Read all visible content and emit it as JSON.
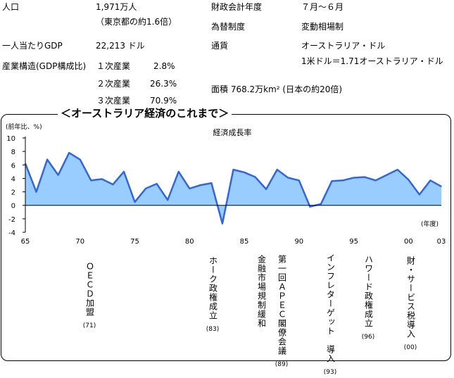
{
  "facts": {
    "population_label": "人口",
    "population_value": "1,971万人",
    "population_note": "（東京都の約1.6倍）",
    "gdp_label": "一人当たりGDP",
    "gdp_value": "22,213 ドル",
    "structure_label": "産業構造(GDP構成比)",
    "primary_label": "１次産業",
    "primary_value": "2.8%",
    "secondary_label": "２次産業",
    "secondary_value": "26.3%",
    "tertiary_label": "３次産業",
    "tertiary_value": "70.9%",
    "fiscal_label": "財政会計年度",
    "fiscal_value": "７月～６月",
    "fx_label": "為替制度",
    "fx_value": "変動相場制",
    "currency_label": "通貨",
    "currency_value": "オーストラリア・ドル",
    "currency_rate": "1米ドル＝1.71オーストラリア・ドル",
    "area_text": "面積 768.2万km² (日本の約20倍)"
  },
  "section_title": "＜オーストラリア経済のこれまで＞",
  "chart_data": {
    "type": "area",
    "title": "経済成長率",
    "ylabel": "(前年比、%)",
    "xlabel": "(年度)",
    "ylim": [
      -4,
      10
    ],
    "yticks": [
      -4,
      -2,
      0,
      2,
      4,
      6,
      8,
      10
    ],
    "xlim": [
      1965,
      2003
    ],
    "x_tick_labels": [
      {
        "x": 1965,
        "label": "65"
      },
      {
        "x": 1970,
        "label": "70"
      },
      {
        "x": 1975,
        "label": "75"
      },
      {
        "x": 1980,
        "label": "80"
      },
      {
        "x": 1985,
        "label": "85"
      },
      {
        "x": 1990,
        "label": "90"
      },
      {
        "x": 1995,
        "label": "95"
      },
      {
        "x": 2000,
        "label": "00"
      },
      {
        "x": 2003,
        "label": "03"
      }
    ],
    "x": [
      1965,
      1966,
      1967,
      1968,
      1969,
      1970,
      1971,
      1972,
      1973,
      1974,
      1975,
      1976,
      1977,
      1978,
      1979,
      1980,
      1981,
      1982,
      1983,
      1984,
      1985,
      1986,
      1987,
      1988,
      1989,
      1990,
      1991,
      1992,
      1993,
      1994,
      1995,
      1996,
      1997,
      1998,
      1999,
      2000,
      2001,
      2002,
      2003
    ],
    "values": [
      6.2,
      2.0,
      6.8,
      4.5,
      7.8,
      6.8,
      3.7,
      3.9,
      3.1,
      5.0,
      0.5,
      2.5,
      3.2,
      0.8,
      5.0,
      2.5,
      3.0,
      3.3,
      -2.7,
      5.3,
      4.9,
      4.2,
      2.4,
      5.3,
      4.1,
      3.7,
      -0.2,
      0.2,
      3.6,
      3.7,
      4.1,
      4.2,
      3.7,
      4.5,
      5.3,
      3.8,
      1.6,
      3.7,
      2.8
    ],
    "colors": {
      "line": "#3366dd",
      "fill": "#99ccff"
    }
  },
  "events": [
    {
      "text": "ＯＥＣＤ加盟",
      "year": "(71)"
    },
    {
      "text": "ホーク政権成立",
      "year": "(83)"
    },
    {
      "text": "金融市場規制緩和",
      "year": ""
    },
    {
      "text": "第一回ＡＰＥＣ閣僚会議",
      "year": "(89)"
    },
    {
      "text": "インフレターゲット　導入",
      "year": "(93)"
    },
    {
      "text": "ハワード政権成立",
      "year": "(96)"
    },
    {
      "text": "財・サービス税導入",
      "year": "(00)"
    }
  ]
}
